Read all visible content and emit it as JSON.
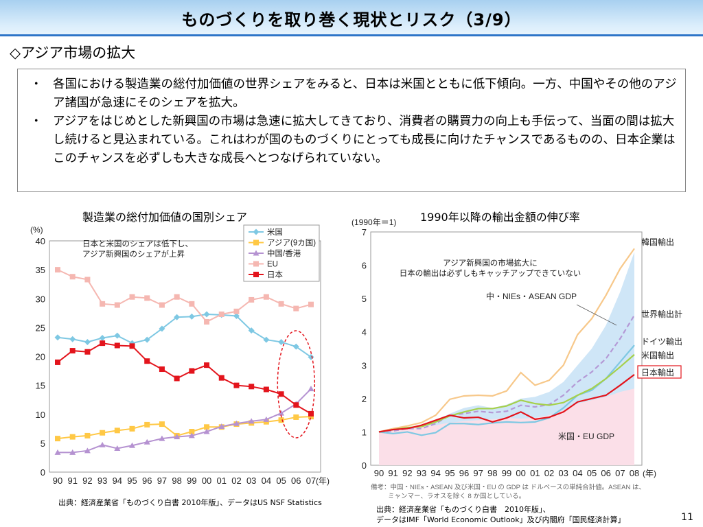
{
  "title": "ものづくりを取り巻く現状とリスク（3/9）",
  "section_heading": "◇アジア市場の拡大",
  "bullets": [
    {
      "marker": "・",
      "text": "各国における製造業の総付加価値の世界シェアをみると、日本は米国とともに低下傾向。一方、中国やその他のアジア諸国が急速にそのシェアを拡大。"
    },
    {
      "marker": "・",
      "text": "アジアをはじめとした新興国の市場は急速に拡大してきており、消費者の購買力の向上も手伝って、当面の間は拡大し続けると見込まれている。これはわが国のものづくりにとっても成長に向けたチャンスであるものの、日本企業はこのチャンスを必ずしも大きな成長へとつなげられていない。"
    }
  ],
  "left_chart_title": "製造業の総付加価値の国別シェア",
  "right_chart_title": "1990年以降の輸出金額の伸び率",
  "left_source": "出典：経済産業省「ものづくり白書 2010年版」、データはUS NSF Statistics",
  "right_source_line1": "出典：経済産業省「ものづくり白書　2010年版」、",
  "right_source_line2": "データはIMF「World Economic Outlook」及び内閣府「国民経済計算」",
  "page_number": "11",
  "chart_data": [
    {
      "type": "line",
      "title": "",
      "y_unit_label": "(%)",
      "x_unit_suffix": "(年)",
      "annotation": [
        "日本と米国のシェアは低下し、",
        "アジア新興国のシェアが上昇"
      ],
      "ylim": [
        0,
        40
      ],
      "yticks": [
        0,
        5,
        10,
        15,
        20,
        25,
        30,
        35,
        40
      ],
      "x": [
        "90",
        "91",
        "92",
        "93",
        "94",
        "95",
        "96",
        "97",
        "98",
        "99",
        "00",
        "01",
        "02",
        "03",
        "04",
        "05",
        "06",
        "07"
      ],
      "legend_position": "top-right",
      "series": [
        {
          "name": "米国",
          "color": "#7ec8e3",
          "marker": "diamond",
          "values": [
            23.3,
            23.0,
            22.5,
            23.2,
            23.6,
            22.3,
            22.9,
            24.8,
            26.8,
            26.9,
            27.3,
            27.2,
            27.0,
            24.5,
            22.9,
            22.5,
            21.7,
            19.9
          ]
        },
        {
          "name": "アジア(9カ国)",
          "color": "#ffc845",
          "marker": "square",
          "values": [
            5.8,
            6.1,
            6.3,
            6.8,
            7.2,
            7.5,
            8.2,
            8.3,
            6.3,
            7.0,
            7.8,
            7.8,
            8.3,
            8.5,
            8.7,
            9.0,
            9.5,
            9.6
          ]
        },
        {
          "name": "中国/香港",
          "color": "#b592d1",
          "marker": "triangle",
          "values": [
            3.4,
            3.4,
            3.7,
            4.7,
            4.1,
            4.6,
            5.2,
            5.8,
            6.1,
            6.3,
            7.0,
            7.9,
            8.4,
            8.8,
            9.1,
            10.2,
            11.8,
            14.4
          ]
        },
        {
          "name": "EU",
          "color": "#f5b7b1",
          "marker": "square",
          "values": [
            35.0,
            33.8,
            33.3,
            29.1,
            28.9,
            30.3,
            30.1,
            28.9,
            30.3,
            29.1,
            26.0,
            27.3,
            27.8,
            29.8,
            30.3,
            29.1,
            28.3,
            29.0
          ]
        },
        {
          "name": "日本",
          "color": "#e3141c",
          "marker": "square",
          "values": [
            19.0,
            21.0,
            20.8,
            22.3,
            21.9,
            21.8,
            19.2,
            17.8,
            16.2,
            17.5,
            18.5,
            16.3,
            15.0,
            14.8,
            14.3,
            13.5,
            11.6,
            10.1
          ]
        }
      ],
      "highlight": "dashed red ellipse around 2005-2007"
    },
    {
      "type": "line",
      "title": "",
      "y_unit_label": "(1990年＝1)",
      "x_unit_suffix": "(年)",
      "annotation": [
        "アジア新興国の市場拡大に",
        "日本の輸出は必ずしもキャッチアップできていない"
      ],
      "ylim": [
        0,
        7
      ],
      "yticks": [
        0,
        1,
        2,
        3,
        4,
        5,
        6,
        7
      ],
      "x": [
        "90",
        "91",
        "92",
        "93",
        "94",
        "95",
        "96",
        "97",
        "98",
        "99",
        "00",
        "01",
        "02",
        "03",
        "04",
        "05",
        "06",
        "07",
        "08"
      ],
      "areas": [
        {
          "name": "中・NIEs・ASEAN GDP",
          "color": "#cfe6f7",
          "values": [
            1.0,
            1.05,
            1.12,
            1.2,
            1.35,
            1.55,
            1.72,
            1.8,
            1.72,
            1.82,
            2.0,
            2.05,
            2.2,
            2.5,
            3.0,
            3.5,
            4.2,
            5.2,
            6.4
          ]
        },
        {
          "name": "米国・EU GDP",
          "color": "#fbdfe8",
          "values": [
            1.0,
            1.04,
            1.1,
            1.15,
            1.2,
            1.28,
            1.32,
            1.35,
            1.38,
            1.42,
            1.4,
            1.42,
            1.5,
            1.65,
            1.85,
            1.95,
            2.05,
            2.2,
            2.3
          ]
        }
      ],
      "series": [
        {
          "name": "韓国輸出",
          "color": "#f7c88a",
          "dash": false,
          "values": [
            1.0,
            1.1,
            1.18,
            1.28,
            1.5,
            1.98,
            2.08,
            2.1,
            2.08,
            2.23,
            2.78,
            2.4,
            2.55,
            3.0,
            3.92,
            4.4,
            5.1,
            5.9,
            6.5
          ]
        },
        {
          "name": "世界輸出計",
          "color": "#b499d6",
          "dash": true,
          "values": [
            1.0,
            1.03,
            1.1,
            1.1,
            1.25,
            1.5,
            1.55,
            1.62,
            1.58,
            1.62,
            1.8,
            1.75,
            1.82,
            2.1,
            2.5,
            2.8,
            3.2,
            3.8,
            4.5
          ]
        },
        {
          "name": "ドイツ輸出",
          "color": "#7ec8e3",
          "dash": false,
          "values": [
            1.0,
            0.95,
            1.0,
            0.9,
            0.98,
            1.25,
            1.25,
            1.22,
            1.27,
            1.3,
            1.28,
            1.3,
            1.42,
            1.72,
            2.1,
            2.25,
            2.6,
            3.1,
            3.6
          ]
        },
        {
          "name": "米国輸出",
          "color": "#a6d04b",
          "dash": false,
          "values": [
            1.0,
            1.07,
            1.13,
            1.16,
            1.3,
            1.48,
            1.6,
            1.7,
            1.7,
            1.78,
            1.95,
            1.85,
            1.8,
            1.88,
            2.1,
            2.3,
            2.6,
            2.95,
            3.32
          ]
        },
        {
          "name": "日本輸出",
          "color": "#e3141c",
          "dash": false,
          "values": [
            1.0,
            1.07,
            1.1,
            1.2,
            1.35,
            1.5,
            1.42,
            1.44,
            1.3,
            1.42,
            1.6,
            1.38,
            1.44,
            1.6,
            1.9,
            2.0,
            2.1,
            2.4,
            2.72
          ]
        }
      ],
      "note": [
        "備考：中国・NIEs・ASEAN 及び米国・EU の GDP は ドルベースの単純合計値。ASEAN は、",
        "ミャンマー、ラオスを除く 8 か国としている。"
      ]
    }
  ]
}
